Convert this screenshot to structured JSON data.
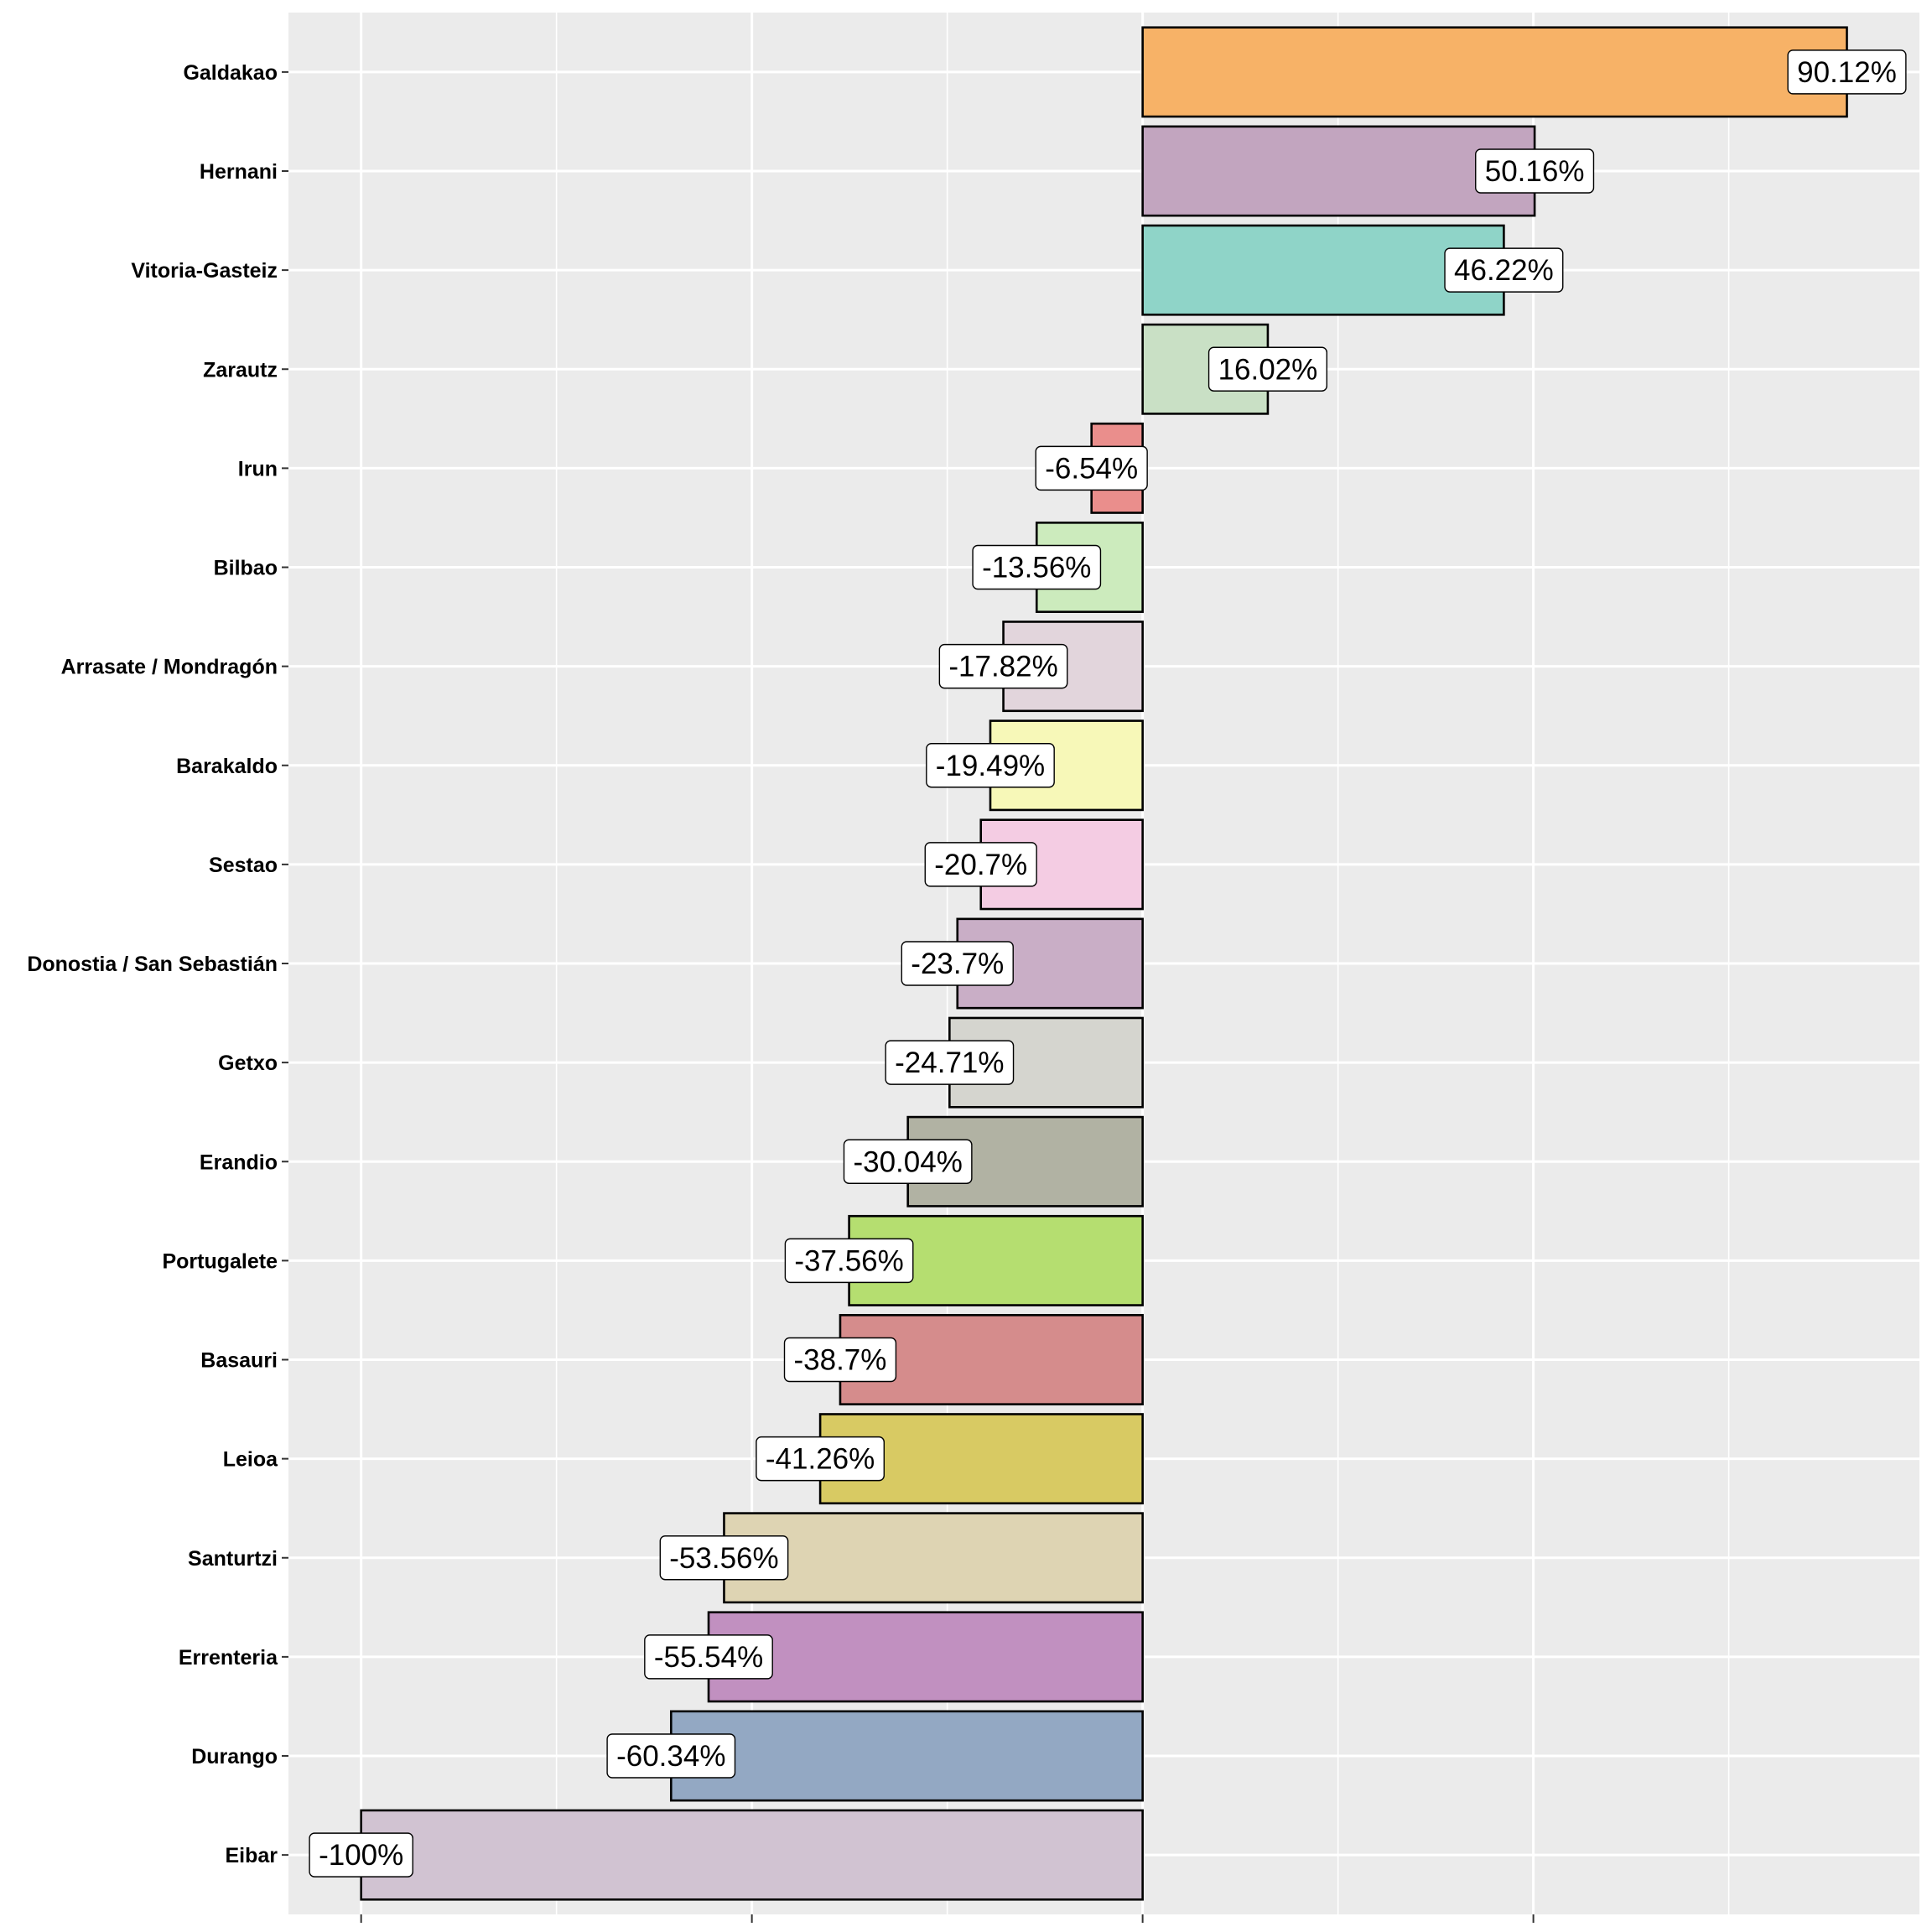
{
  "chart_data": {
    "type": "bar",
    "orientation": "horizontal",
    "title": "",
    "xlabel": "",
    "ylabel": "",
    "xlim": [
      -109.3,
      99.4
    ],
    "x_ticks": [
      -100,
      -50,
      0,
      50
    ],
    "x_tick_labels_shown": false,
    "grid": true,
    "legend": "none",
    "categories": [
      "Galdakao",
      "Hernani",
      "Vitoria-Gasteiz",
      "Zarautz",
      "Irun",
      "Bilbao",
      "Arrasate / Mondragón",
      "Barakaldo",
      "Sestao",
      "Donostia / San Sebastián",
      "Getxo",
      "Erandio",
      "Portugalete",
      "Basauri",
      "Leioa",
      "Santurtzi",
      "Errenteria",
      "Durango",
      "Eibar"
    ],
    "values": [
      90.12,
      50.16,
      46.22,
      16.02,
      -6.54,
      -13.56,
      -17.82,
      -19.49,
      -20.7,
      -23.7,
      -24.71,
      -30.04,
      -37.56,
      -38.7,
      -41.26,
      -53.56,
      -55.54,
      -60.34,
      -100
    ],
    "data_labels": [
      "90.12%",
      "50.16%",
      "46.22%",
      "16.02%",
      "-6.54%",
      "-13.56%",
      "-17.82%",
      "-19.49%",
      "-20.7%",
      "-23.7%",
      "-24.71%",
      "-30.04%",
      "-37.56%",
      "-38.7%",
      "-41.26%",
      "-53.56%",
      "-55.54%",
      "-60.34%",
      "-100%"
    ],
    "colors": [
      "#F7B267",
      "#C2A5BF",
      "#8FD4C8",
      "#C9E0C5",
      "#EA8E8C",
      "#CCEBBD",
      "#E2D5DC",
      "#F7F8B8",
      "#F4CCE3",
      "#C9AEC6",
      "#D5D5CF",
      "#B1B2A3",
      "#B5DE70",
      "#D58C8C",
      "#D8CA63",
      "#DED4B3",
      "#C190C0",
      "#93A8C3",
      "#D1C3D2"
    ]
  }
}
